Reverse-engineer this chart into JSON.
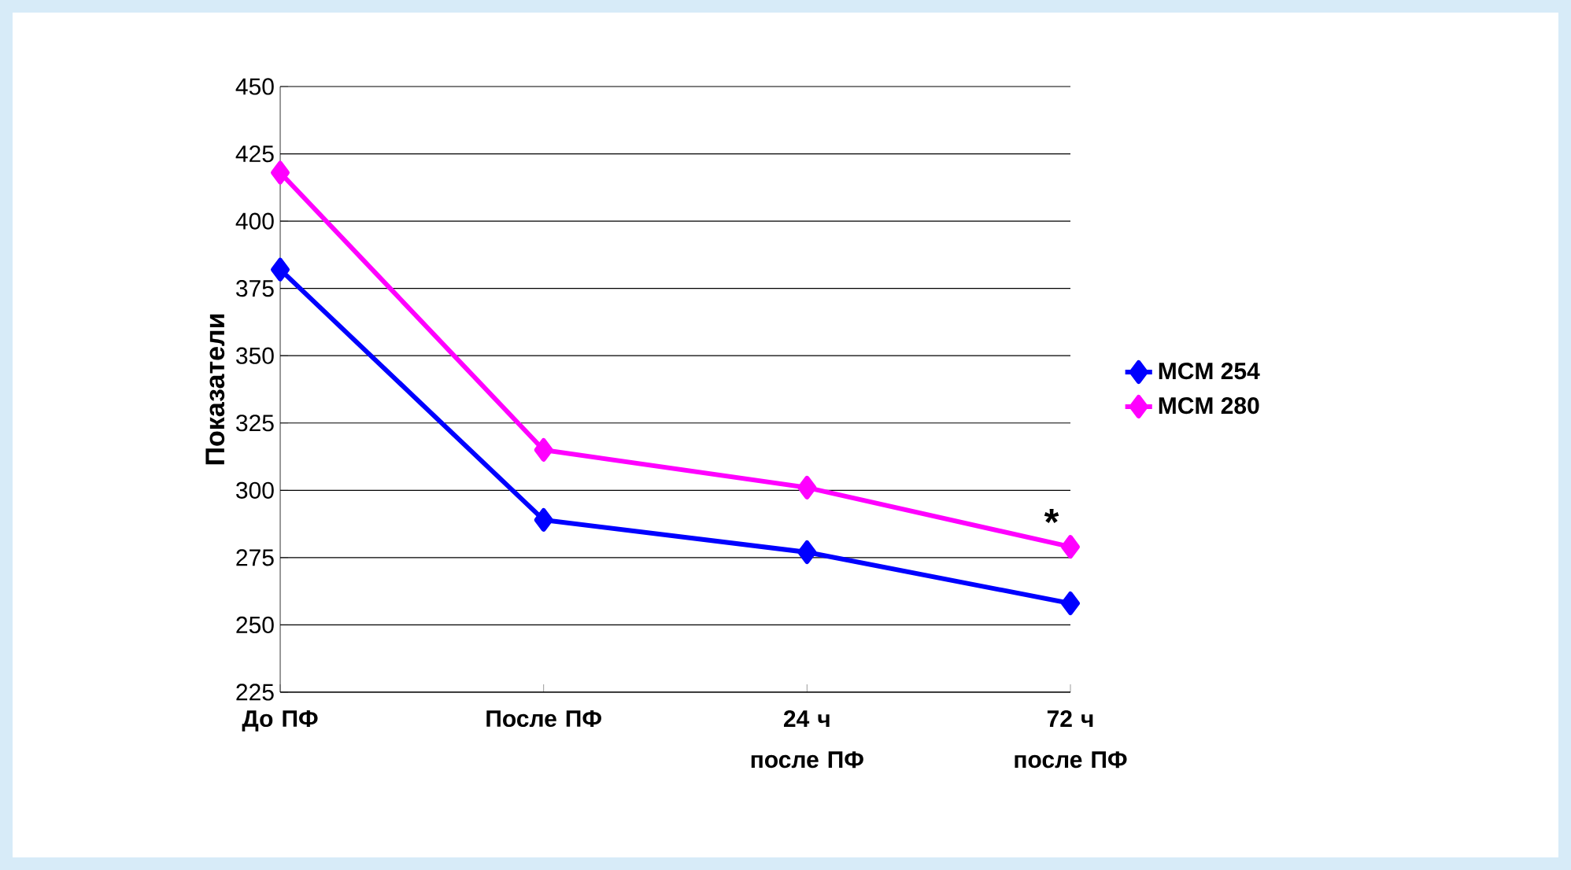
{
  "chart_data": {
    "type": "line",
    "ylabel": "Показатели",
    "categories": [
      "До ПФ",
      "После ПФ",
      "24 ч после ПФ",
      "72 ч после ПФ"
    ],
    "series": [
      {
        "name": "MCM 254",
        "color": "#0000ff",
        "values": [
          382,
          289,
          277,
          258
        ]
      },
      {
        "name": "MCM 280",
        "color": "#ff00ff",
        "values": [
          418,
          315,
          301,
          279
        ]
      }
    ],
    "ylim": [
      225,
      450
    ],
    "yticks": [
      225,
      250,
      275,
      300,
      325,
      350,
      375,
      400,
      425,
      450
    ],
    "grid": "y",
    "legend": "right",
    "marker": "diamond",
    "line_style": "solid",
    "annotations": [
      {
        "text": "*",
        "x": "72 ч после ПФ",
        "y": 279
      }
    ]
  }
}
